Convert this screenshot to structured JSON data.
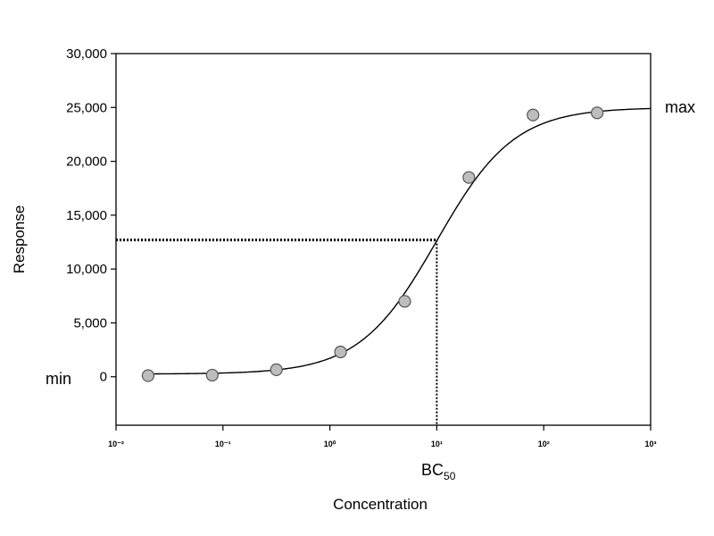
{
  "chart_data": {
    "type": "scatter",
    "title": "",
    "xlabel": "Concentration",
    "ylabel": "Response",
    "xscale": "log",
    "xlim": [
      -2,
      3
    ],
    "ylim": [
      -4500,
      30000
    ],
    "grid": false,
    "legend": "none",
    "y_ticks": [
      0,
      5000,
      10000,
      15000,
      20000,
      25000,
      30000
    ],
    "y_tick_labels": [
      "0",
      "5,000",
      "10,000",
      "15,000",
      "20,000",
      "25,000",
      "30,000"
    ],
    "x_ticks": [
      -2,
      -1,
      0,
      1,
      2,
      3
    ],
    "x_tick_labels": [
      "10⁻²",
      "10⁻¹",
      "10⁰",
      "10¹",
      "10²",
      "10³"
    ],
    "points": [
      {
        "x": -1.7,
        "y": 100
      },
      {
        "x": -1.1,
        "y": 150
      },
      {
        "x": -0.5,
        "y": 650
      },
      {
        "x": 0.1,
        "y": 2300
      },
      {
        "x": 0.7,
        "y": 7000
      },
      {
        "x": 1.3,
        "y": 18500
      },
      {
        "x": 1.9,
        "y": 24300
      },
      {
        "x": 2.5,
        "y": 24500
      }
    ],
    "fit": {
      "bottom": 250,
      "top": 25000,
      "log_bc50": 1.0,
      "hill": 1.2
    },
    "bc50": {
      "x": 1.0,
      "y": 12700
    },
    "annotations": {
      "max": "max",
      "min": "min",
      "bc_main": "BC",
      "bc_sub": "50"
    },
    "colors": {
      "marker_fill": "#bdbdbd",
      "line": "#000000"
    }
  }
}
